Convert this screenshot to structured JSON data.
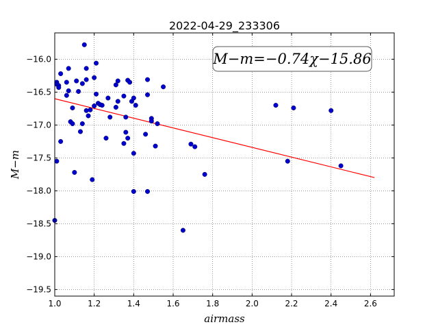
{
  "chart_data": {
    "type": "scatter",
    "title": "2022-04-29_233306",
    "xlabel": "airmass",
    "ylabel": "M−m",
    "xlim": [
      1.0,
      2.72
    ],
    "ylim": [
      -19.6,
      -15.6
    ],
    "y_inverted": true,
    "grid": true,
    "grid_style": "dotted",
    "xticks": [
      1.0,
      1.2,
      1.4,
      1.6,
      1.8,
      2.0,
      2.2,
      2.4,
      2.6
    ],
    "xtick_labels": [
      "1.0",
      "1.2",
      "1.4",
      "1.6",
      "1.8",
      "2.0",
      "2.2",
      "2.4",
      "2.6"
    ],
    "yticks": [
      -16.0,
      -16.5,
      -17.0,
      -17.5,
      -18.0,
      -18.5,
      -19.0,
      -19.5
    ],
    "ytick_labels": [
      "−16.0",
      "−16.5",
      "−17.0",
      "−17.5",
      "−18.0",
      "−18.5",
      "−19.0",
      "−19.5"
    ],
    "annotation": "M−m=−0.74χ−15.86",
    "annotation_position": "top-right",
    "marker_color": "#0000cc",
    "fit_color": "#ff0000",
    "fit_line": {
      "slope": -0.74,
      "intercept": -15.86,
      "x_range": [
        1.0,
        2.62
      ]
    },
    "series": [
      {
        "points": [
          [
            1.0,
            -18.45
          ],
          [
            1.01,
            -16.35
          ],
          [
            1.01,
            -16.38
          ],
          [
            1.01,
            -17.55
          ],
          [
            1.02,
            -16.4
          ],
          [
            1.02,
            -16.43
          ],
          [
            1.03,
            -16.22
          ],
          [
            1.03,
            -17.25
          ],
          [
            1.06,
            -16.35
          ],
          [
            1.06,
            -16.55
          ],
          [
            1.07,
            -16.48
          ],
          [
            1.07,
            -16.14
          ],
          [
            1.08,
            -16.95
          ],
          [
            1.09,
            -16.74
          ],
          [
            1.09,
            -16.98
          ],
          [
            1.1,
            -17.72
          ],
          [
            1.11,
            -16.33
          ],
          [
            1.12,
            -16.49
          ],
          [
            1.13,
            -17.1
          ],
          [
            1.14,
            -16.98
          ],
          [
            1.14,
            -16.37
          ],
          [
            1.15,
            -15.78
          ],
          [
            1.16,
            -16.78
          ],
          [
            1.16,
            -16.14
          ],
          [
            1.16,
            -16.31
          ],
          [
            1.17,
            -16.86
          ],
          [
            1.18,
            -16.77
          ],
          [
            1.19,
            -17.83
          ],
          [
            1.2,
            -16.71
          ],
          [
            1.2,
            -16.28
          ],
          [
            1.21,
            -16.53
          ],
          [
            1.21,
            -16.06
          ],
          [
            1.22,
            -16.67
          ],
          [
            1.23,
            -16.69
          ],
          [
            1.24,
            -16.7
          ],
          [
            1.26,
            -17.2
          ],
          [
            1.27,
            -16.59
          ],
          [
            1.28,
            -16.88
          ],
          [
            1.31,
            -16.39
          ],
          [
            1.31,
            -16.73
          ],
          [
            1.32,
            -16.33
          ],
          [
            1.32,
            -16.64
          ],
          [
            1.35,
            -16.56
          ],
          [
            1.35,
            -17.28
          ],
          [
            1.36,
            -16.88
          ],
          [
            1.36,
            -17.11
          ],
          [
            1.37,
            -16.32
          ],
          [
            1.37,
            -17.2
          ],
          [
            1.38,
            -16.35
          ],
          [
            1.39,
            -16.64
          ],
          [
            1.4,
            -16.59
          ],
          [
            1.4,
            -17.43
          ],
          [
            1.4,
            -18.01
          ],
          [
            1.41,
            -16.7
          ],
          [
            1.46,
            -17.14
          ],
          [
            1.47,
            -16.31
          ],
          [
            1.47,
            -16.54
          ],
          [
            1.47,
            -18.01
          ],
          [
            1.49,
            -16.9
          ],
          [
            1.49,
            -16.94
          ],
          [
            1.51,
            -17.32
          ],
          [
            1.52,
            -16.98
          ],
          [
            1.55,
            -16.42
          ],
          [
            1.65,
            -18.6
          ],
          [
            1.69,
            -17.29
          ],
          [
            1.71,
            -17.33
          ],
          [
            1.76,
            -17.75
          ],
          [
            2.12,
            -16.7
          ],
          [
            2.18,
            -17.55
          ],
          [
            2.21,
            -16.74
          ],
          [
            2.4,
            -16.78
          ],
          [
            2.45,
            -17.62
          ]
        ]
      }
    ]
  }
}
